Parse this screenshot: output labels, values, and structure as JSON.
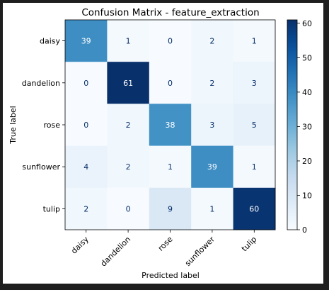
{
  "chart_data": {
    "type": "heatmap",
    "title": "Confusion Matrix - feature_extraction",
    "xlabel": "Predicted label",
    "ylabel": "True label",
    "x_categories": [
      "daisy",
      "dandelion",
      "rose",
      "sunflower",
      "tulip"
    ],
    "y_categories": [
      "daisy",
      "dandelion",
      "rose",
      "sunflower",
      "tulip"
    ],
    "values": [
      [
        39,
        1,
        0,
        2,
        1
      ],
      [
        0,
        61,
        0,
        2,
        3
      ],
      [
        0,
        2,
        38,
        3,
        5
      ],
      [
        4,
        2,
        1,
        39,
        1
      ],
      [
        2,
        0,
        9,
        1,
        60
      ]
    ],
    "colormap": "Blues",
    "colorbar": {
      "range": [
        0,
        61
      ],
      "ticks": [
        "0",
        "10",
        "20",
        "30",
        "40",
        "50",
        "60"
      ]
    },
    "text_colors": {
      "dark_cell": "#ffffff",
      "light_cell": "#08306b"
    }
  }
}
